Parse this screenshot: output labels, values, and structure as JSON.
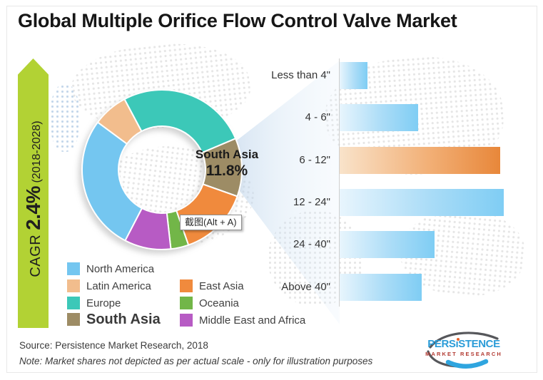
{
  "title": "Global Multiple Orifice Flow Control Valve Market",
  "cagr": {
    "prefix": "CAGR ",
    "value": "2.4%",
    "period": " (2018-2028)"
  },
  "chart_data": [
    {
      "type": "pie",
      "subtype": "donut",
      "title": "Regional market share",
      "start_angle_clockwise_from_top_deg": -28,
      "order_clockwise": [
        "Europe",
        "South Asia",
        "East Asia",
        "Oceania",
        "Middle East and Africa",
        "North America",
        "Latin America"
      ],
      "segments": [
        {
          "name": "Europe",
          "value": 26.4,
          "color": "#3cc8b8"
        },
        {
          "name": "South Asia",
          "value": 11.8,
          "color": "#9d8c65"
        },
        {
          "name": "East Asia",
          "value": 14.2,
          "color": "#f08a3d"
        },
        {
          "name": "Oceania",
          "value": 3.6,
          "color": "#72b648"
        },
        {
          "name": "Middle East and Africa",
          "value": 9.4,
          "color": "#b75bc4"
        },
        {
          "name": "North America",
          "value": 27.5,
          "color": "#74c6f0"
        },
        {
          "name": "Latin America",
          "value": 7.1,
          "color": "#f2bd8d"
        }
      ],
      "center_label": {
        "line1": "South Asia",
        "line2": "11.8%"
      },
      "note": "only South Asia share labelled"
    },
    {
      "type": "bar",
      "orientation": "horizontal",
      "title": "Market by valve size",
      "categories": [
        "Less than 4\"",
        "4 - 6\"",
        "6 - 12\"",
        "12 - 24\"",
        "24 - 40\"",
        "Above 40\""
      ],
      "values": [
        17,
        48,
        98,
        100,
        58,
        50
      ],
      "values_unit": "percent of longest bar (no numeric axis shown - illustrative only)",
      "highlight_category": "6 - 12\"",
      "bar_color": "#7fcdf4",
      "highlight_color": "#e8873a",
      "grid": false,
      "legend_position": "none"
    }
  ],
  "legend": {
    "columns": [
      [
        {
          "label": "North America",
          "emphasis": false
        },
        {
          "label": "Latin America",
          "emphasis": false
        },
        {
          "label": "Europe",
          "emphasis": false
        },
        {
          "label": "South Asia",
          "emphasis": true
        }
      ],
      [
        {
          "label": "East Asia",
          "emphasis": false
        },
        {
          "label": "Oceania",
          "emphasis": false
        },
        {
          "label": "Middle East and Africa",
          "emphasis": false
        }
      ]
    ]
  },
  "tooltip": {
    "text": "截图(Alt + A)"
  },
  "footer": {
    "source": "Source: Persistence Market Research, 2018",
    "note": "Note: Market shares not depicted as per actual scale - only for illustration purposes"
  },
  "logo": {
    "line1": "PERSiSTENCE",
    "line2": "MARKET RESEARCH"
  },
  "colors": {
    "arrow_green": "#b2d234",
    "fan_blue": "#c7dcef",
    "axis_gray": "#cfcfcf",
    "title_text": "#161616"
  }
}
